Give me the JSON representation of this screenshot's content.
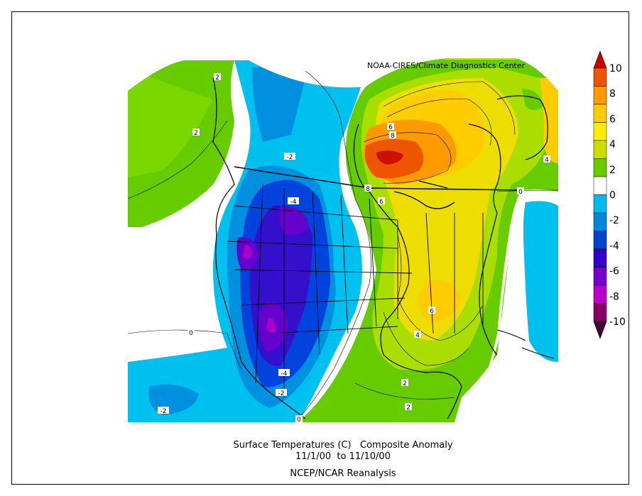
{
  "credit": "NOAA-CIRES/Climate Diagnostics Center",
  "caption": {
    "line1": "Surface Temperatures (C)   Composite Anomaly",
    "line2": "11/1/00  to 11/10/00",
    "line3": "NCEP/NCAR Reanalysis"
  },
  "colorbar": {
    "levels": [
      "10",
      "8",
      "6",
      "4",
      "2",
      "0",
      "-2",
      "-4",
      "-6",
      "-8",
      "-10"
    ],
    "colors": [
      "#cc0000",
      "#ee5500",
      "#ff9900",
      "#ffcc00",
      "#ffee00",
      "#ccdd00",
      "#66cc00",
      "#ffffff",
      "#00bbee",
      "#0088dd",
      "#0044cc",
      "#3300cc",
      "#7700cc",
      "#bb00cc",
      "#880066",
      "#440033"
    ]
  },
  "contour_labels": [
    "2",
    "2",
    "-2",
    "-4",
    "-4",
    "-2",
    "-2",
    "0",
    "0",
    "6",
    "8",
    "8",
    "6",
    "4",
    "0",
    "6",
    "4",
    "2",
    "2"
  ],
  "palette": {
    "dark_red": "#cc1100",
    "orange_red": "#ee5500",
    "orange": "#ff9900",
    "yellow_orange": "#ffcc00",
    "yellow": "#eedd00",
    "yellow_green": "#aadd00",
    "green": "#55cc00",
    "white": "#ffffff",
    "light_blue": "#00c0f0",
    "mid_blue": "#0090e0",
    "blue": "#0044dd",
    "dark_blue": "#3311cc",
    "violet": "#6600cc",
    "purple": "#aa00cc",
    "magenta": "#880066"
  }
}
